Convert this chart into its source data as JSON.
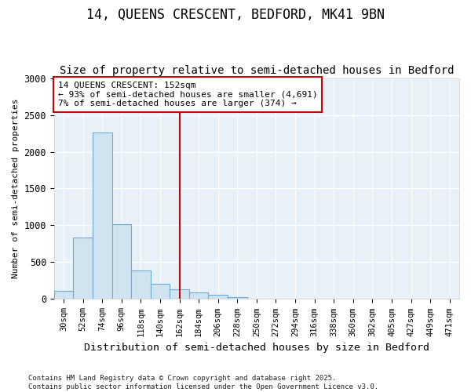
{
  "title": "14, QUEENS CRESCENT, BEDFORD, MK41 9BN",
  "subtitle": "Size of property relative to semi-detached houses in Bedford",
  "xlabel": "Distribution of semi-detached houses by size in Bedford",
  "ylabel": "Number of semi-detached properties",
  "categories": [
    "30sqm",
    "52sqm",
    "74sqm",
    "96sqm",
    "118sqm",
    "140sqm",
    "162sqm",
    "184sqm",
    "206sqm",
    "228sqm",
    "250sqm",
    "272sqm",
    "294sqm",
    "316sqm",
    "338sqm",
    "360sqm",
    "382sqm",
    "405sqm",
    "427sqm",
    "449sqm",
    "471sqm"
  ],
  "values": [
    110,
    840,
    2260,
    1015,
    390,
    210,
    130,
    95,
    55,
    30,
    10,
    5,
    2,
    0,
    0,
    0,
    0,
    0,
    0,
    0,
    0
  ],
  "bar_color": "#d0e4f0",
  "bar_edge_color": "#6aaad4",
  "vline_x": 6,
  "vline_color": "#cc0000",
  "annotation_text": "14 QUEENS CRESCENT: 152sqm\n← 93% of semi-detached houses are smaller (4,691)\n7% of semi-detached houses are larger (374) →",
  "annotation_box_color": "#cc0000",
  "footer": "Contains HM Land Registry data © Crown copyright and database right 2025.\nContains public sector information licensed under the Open Government Licence v3.0.",
  "ylim": [
    0,
    3000
  ],
  "fig_bg_color": "#ffffff",
  "plot_bg_color": "#e8f0f8",
  "grid_color": "#ffffff",
  "title_fontsize": 12,
  "subtitle_fontsize": 10
}
